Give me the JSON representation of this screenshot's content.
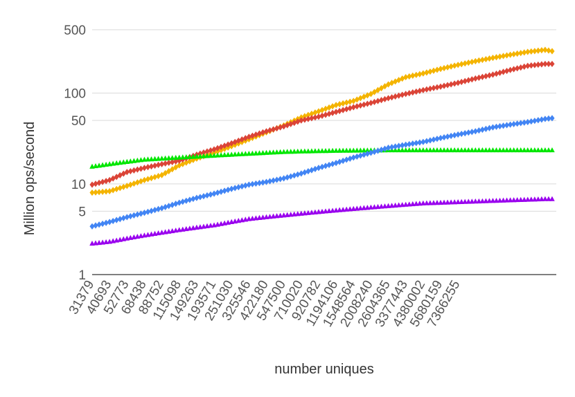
{
  "chart_data": {
    "type": "scatter",
    "title": "",
    "xlabel": "number uniques",
    "ylabel": "Million ops/second",
    "yscale": "log",
    "ylim": [
      1,
      500
    ],
    "y_ticks": [
      "1",
      "5",
      "10",
      "50",
      "100",
      "500"
    ],
    "grid": "horizontal",
    "legend": "none",
    "x_tick_labels": [
      "31379",
      "40693",
      "52773",
      "68438",
      "88752",
      "115098",
      "149263",
      "193571",
      "251030",
      "325546",
      "422180",
      "547500",
      "710020",
      "920782",
      "1194106",
      "1548564",
      "2008240",
      "2604365",
      "3377443",
      "4380002",
      "5680159",
      "7366255"
    ],
    "x_ticks_every": 5,
    "series": [
      {
        "color": "#f4b400",
        "marker": "diamond",
        "anchors": [
          [
            0,
            8
          ],
          [
            5,
            8.3
          ],
          [
            10,
            9.5
          ],
          [
            15,
            11
          ],
          [
            20,
            12.5
          ],
          [
            25,
            16
          ],
          [
            30,
            19
          ],
          [
            35,
            22
          ],
          [
            40,
            26
          ],
          [
            45,
            31
          ],
          [
            50,
            37
          ],
          [
            55,
            44
          ],
          [
            60,
            54
          ],
          [
            65,
            63
          ],
          [
            70,
            74
          ],
          [
            75,
            82
          ],
          [
            80,
            98
          ],
          [
            85,
            125
          ],
          [
            90,
            150
          ],
          [
            95,
            165
          ],
          [
            100,
            185
          ],
          [
            105,
            205
          ],
          [
            110,
            225
          ],
          [
            115,
            245
          ],
          [
            120,
            265
          ],
          [
            125,
            285
          ],
          [
            130,
            300
          ],
          [
            132,
            290
          ]
        ]
      },
      {
        "color": "#db4437",
        "marker": "diamond",
        "anchors": [
          [
            0,
            9.8
          ],
          [
            5,
            11
          ],
          [
            10,
            13.5
          ],
          [
            15,
            15
          ],
          [
            20,
            16.5
          ],
          [
            25,
            18
          ],
          [
            30,
            21
          ],
          [
            35,
            24
          ],
          [
            40,
            28
          ],
          [
            45,
            33
          ],
          [
            50,
            38
          ],
          [
            55,
            43
          ],
          [
            60,
            50
          ],
          [
            65,
            55
          ],
          [
            70,
            62
          ],
          [
            75,
            70
          ],
          [
            80,
            78
          ],
          [
            85,
            88
          ],
          [
            90,
            98
          ],
          [
            95,
            108
          ],
          [
            100,
            118
          ],
          [
            105,
            130
          ],
          [
            110,
            145
          ],
          [
            115,
            160
          ],
          [
            120,
            180
          ],
          [
            125,
            200
          ],
          [
            130,
            210
          ],
          [
            132,
            210
          ]
        ]
      },
      {
        "color": "#00e600",
        "marker": "triangle",
        "anchors": [
          [
            0,
            15.5
          ],
          [
            5,
            16.5
          ],
          [
            10,
            17.5
          ],
          [
            15,
            18.5
          ],
          [
            20,
            19
          ],
          [
            25,
            19.5
          ],
          [
            30,
            20
          ],
          [
            35,
            20.5
          ],
          [
            40,
            21
          ],
          [
            45,
            21.5
          ],
          [
            50,
            22
          ],
          [
            55,
            22.5
          ],
          [
            60,
            22.8
          ],
          [
            65,
            23
          ],
          [
            70,
            23.2
          ],
          [
            75,
            23.3
          ],
          [
            80,
            23.4
          ],
          [
            85,
            23.5
          ],
          [
            90,
            23.5
          ],
          [
            95,
            23.5
          ],
          [
            100,
            23.5
          ],
          [
            105,
            23.5
          ],
          [
            110,
            23.5
          ],
          [
            115,
            23.5
          ],
          [
            120,
            23.5
          ],
          [
            125,
            23.5
          ],
          [
            130,
            23.5
          ],
          [
            132,
            23.5
          ]
        ]
      },
      {
        "color": "#4285f4",
        "marker": "diamond",
        "anchors": [
          [
            0,
            3.4
          ],
          [
            5,
            3.8
          ],
          [
            10,
            4.3
          ],
          [
            15,
            4.8
          ],
          [
            20,
            5.4
          ],
          [
            25,
            6.2
          ],
          [
            30,
            7
          ],
          [
            35,
            7.8
          ],
          [
            40,
            8.8
          ],
          [
            45,
            9.8
          ],
          [
            50,
            10.5
          ],
          [
            55,
            11.5
          ],
          [
            60,
            13
          ],
          [
            65,
            15
          ],
          [
            70,
            17
          ],
          [
            75,
            19.5
          ],
          [
            80,
            22
          ],
          [
            85,
            25
          ],
          [
            90,
            27
          ],
          [
            95,
            29
          ],
          [
            100,
            32
          ],
          [
            105,
            35
          ],
          [
            110,
            38
          ],
          [
            115,
            42
          ],
          [
            120,
            45
          ],
          [
            125,
            48
          ],
          [
            130,
            52
          ],
          [
            132,
            53
          ]
        ]
      },
      {
        "color": "#9900ee",
        "marker": "triangle",
        "anchors": [
          [
            0,
            2.2
          ],
          [
            5,
            2.3
          ],
          [
            10,
            2.5
          ],
          [
            15,
            2.7
          ],
          [
            20,
            2.9
          ],
          [
            25,
            3.1
          ],
          [
            30,
            3.3
          ],
          [
            35,
            3.5
          ],
          [
            40,
            3.8
          ],
          [
            45,
            4.1
          ],
          [
            50,
            4.3
          ],
          [
            55,
            4.5
          ],
          [
            60,
            4.7
          ],
          [
            65,
            4.9
          ],
          [
            70,
            5.1
          ],
          [
            75,
            5.3
          ],
          [
            80,
            5.5
          ],
          [
            85,
            5.7
          ],
          [
            90,
            5.9
          ],
          [
            95,
            6.1
          ],
          [
            100,
            6.2
          ],
          [
            105,
            6.3
          ],
          [
            110,
            6.4
          ],
          [
            115,
            6.5
          ],
          [
            120,
            6.6
          ],
          [
            125,
            6.7
          ],
          [
            130,
            6.8
          ],
          [
            132,
            6.8
          ]
        ]
      }
    ]
  }
}
